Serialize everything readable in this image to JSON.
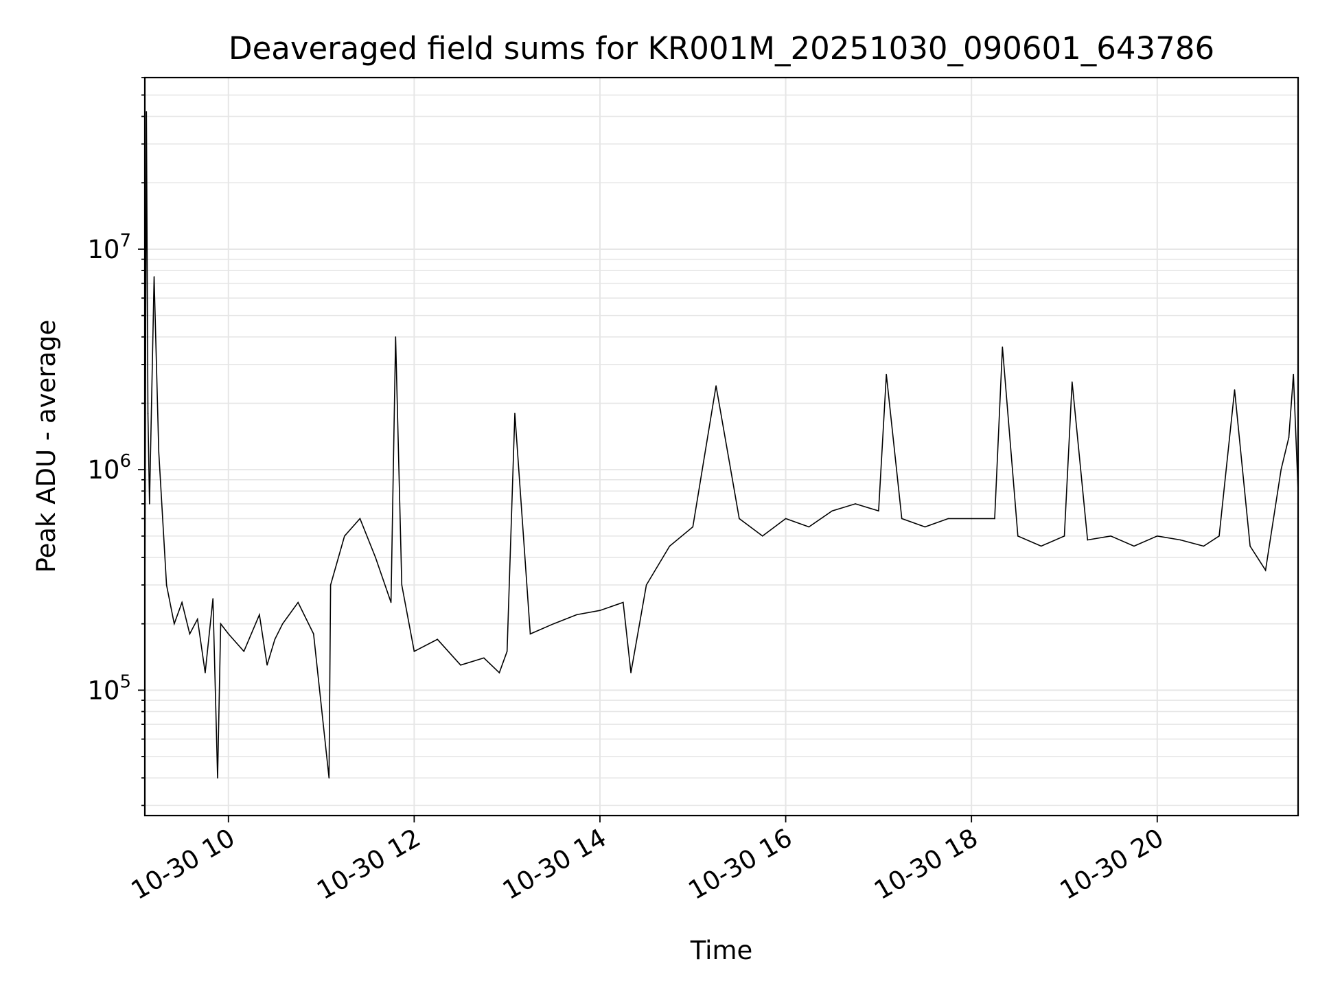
{
  "chart_data": {
    "type": "line",
    "title": "Deaveraged field sums for KR001M_20251030_090601_643786",
    "xlabel": "Time",
    "ylabel": "Peak ADU - average",
    "y_scale": "log",
    "ylim": [
      27000,
      60000000
    ],
    "xlim": [
      "2025-10-30 09:06",
      "2025-10-30 21:31"
    ],
    "x_ticks": [
      {
        "value": "2025-10-30 10:00",
        "label": "10-30 10"
      },
      {
        "value": "2025-10-30 12:00",
        "label": "10-30 12"
      },
      {
        "value": "2025-10-30 14:00",
        "label": "10-30 14"
      },
      {
        "value": "2025-10-30 16:00",
        "label": "10-30 16"
      },
      {
        "value": "2025-10-30 18:00",
        "label": "10-30 18"
      },
      {
        "value": "2025-10-30 20:00",
        "label": "10-30 20"
      }
    ],
    "y_ticks": [
      {
        "value": 100000,
        "base": "10",
        "exp": "5"
      },
      {
        "value": 1000000,
        "base": "10",
        "exp": "6"
      },
      {
        "value": 10000000,
        "base": "10",
        "exp": "7"
      }
    ],
    "grid": true,
    "line_color": "#000000",
    "grid_color": "#e6e6e6",
    "series": [
      {
        "x": [
          "2025-10-30 09:06",
          "2025-10-30 09:07",
          "2025-10-30 09:08",
          "2025-10-30 09:09",
          "2025-10-30 09:12",
          "2025-10-30 09:15",
          "2025-10-30 09:20",
          "2025-10-30 09:25",
          "2025-10-30 09:30",
          "2025-10-30 09:35",
          "2025-10-30 09:40",
          "2025-10-30 09:45",
          "2025-10-30 09:50",
          "2025-10-30 09:53",
          "2025-10-30 09:55",
          "2025-10-30 10:00",
          "2025-10-30 10:10",
          "2025-10-30 10:20",
          "2025-10-30 10:25",
          "2025-10-30 10:30",
          "2025-10-30 10:35",
          "2025-10-30 10:45",
          "2025-10-30 10:55",
          "2025-10-30 11:05",
          "2025-10-30 11:06",
          "2025-10-30 11:15",
          "2025-10-30 11:25",
          "2025-10-30 11:35",
          "2025-10-30 11:45",
          "2025-10-30 11:48",
          "2025-10-30 11:52",
          "2025-10-30 12:00",
          "2025-10-30 12:15",
          "2025-10-30 12:30",
          "2025-10-30 12:45",
          "2025-10-30 12:55",
          "2025-10-30 13:00",
          "2025-10-30 13:05",
          "2025-10-30 13:15",
          "2025-10-30 13:30",
          "2025-10-30 13:45",
          "2025-10-30 14:00",
          "2025-10-30 14:15",
          "2025-10-30 14:20",
          "2025-10-30 14:30",
          "2025-10-30 14:45",
          "2025-10-30 15:00",
          "2025-10-30 15:15",
          "2025-10-30 15:30",
          "2025-10-30 15:45",
          "2025-10-30 16:00",
          "2025-10-30 16:15",
          "2025-10-30 16:30",
          "2025-10-30 16:45",
          "2025-10-30 17:00",
          "2025-10-30 17:05",
          "2025-10-30 17:15",
          "2025-10-30 17:30",
          "2025-10-30 17:45",
          "2025-10-30 18:00",
          "2025-10-30 18:15",
          "2025-10-30 18:20",
          "2025-10-30 18:30",
          "2025-10-30 18:45",
          "2025-10-30 19:00",
          "2025-10-30 19:05",
          "2025-10-30 19:15",
          "2025-10-30 19:30",
          "2025-10-30 19:45",
          "2025-10-30 20:00",
          "2025-10-30 20:15",
          "2025-10-30 20:30",
          "2025-10-30 20:40",
          "2025-10-30 20:50",
          "2025-10-30 21:00",
          "2025-10-30 21:10",
          "2025-10-30 21:20",
          "2025-10-30 21:25",
          "2025-10-30 21:28",
          "2025-10-30 21:31"
        ],
        "y": [
          230000,
          42000000,
          1800000,
          700000,
          7500000,
          1200000,
          300000,
          200000,
          250000,
          180000,
          210000,
          120000,
          260000,
          40000,
          200000,
          180000,
          150000,
          220000,
          130000,
          170000,
          200000,
          250000,
          180000,
          40000,
          300000,
          500000,
          600000,
          400000,
          250000,
          4000000,
          300000,
          150000,
          170000,
          130000,
          140000,
          120000,
          150000,
          1800000,
          180000,
          200000,
          220000,
          230000,
          250000,
          120000,
          300000,
          450000,
          550000,
          2400000,
          600000,
          500000,
          600000,
          550000,
          650000,
          700000,
          650000,
          2700000,
          600000,
          550000,
          600000,
          600000,
          600000,
          3600000,
          500000,
          450000,
          500000,
          2500000,
          480000,
          500000,
          450000,
          500000,
          480000,
          450000,
          500000,
          2300000,
          450000,
          350000,
          1000000,
          1400000,
          2700000,
          800000
        ]
      }
    ]
  }
}
